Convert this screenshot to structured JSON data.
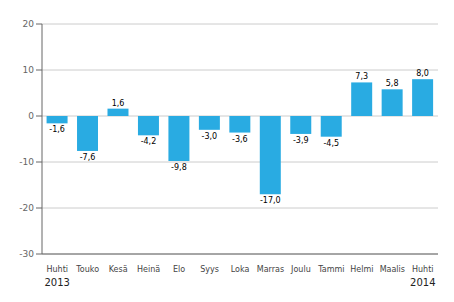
{
  "chart_data": {
    "type": "bar",
    "categories": [
      "Huhti",
      "Touko",
      "Kesä",
      "Heinä",
      "Elo",
      "Syys",
      "Loka",
      "Marras",
      "Joulu",
      "Tammi",
      "Helmi",
      "Maalis",
      "Huhti"
    ],
    "values": [
      -1.6,
      -7.6,
      1.6,
      -4.2,
      -9.8,
      -3.0,
      -3.6,
      -17.0,
      -3.9,
      -4.5,
      7.3,
      5.8,
      8.0
    ],
    "value_labels": [
      "-1,6",
      "-7,6",
      "1,6",
      "-4,2",
      "-9,8",
      "-3,0",
      "-3,6",
      "-17,0",
      "-3,9",
      "-4,5",
      "7,3",
      "5,8",
      "8,0"
    ],
    "data_labels": true,
    "color": "#29abe2",
    "ylim": [
      -30,
      20
    ],
    "yticks": [
      -30,
      -20,
      -10,
      0,
      10,
      20
    ],
    "grid": true,
    "annotations": [
      {
        "text": "2013",
        "index": 0
      },
      {
        "text": "2014",
        "index": 12
      }
    ]
  }
}
